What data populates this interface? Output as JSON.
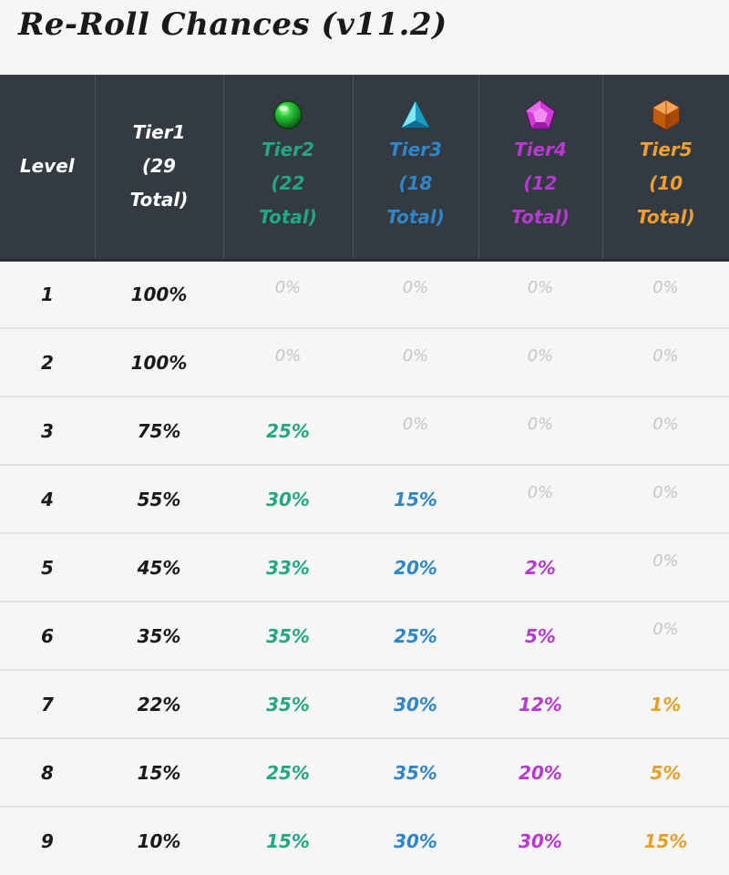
{
  "title": "Re-Roll Chances (v11.2)",
  "columns": {
    "level": "Level",
    "tiers": [
      {
        "label": "Tier1",
        "count": "(29",
        "total": "Total)",
        "gem_icon": "none",
        "color": "#ffffff"
      },
      {
        "label": "Tier2",
        "count": "(22",
        "total": "Total)",
        "gem_icon": "green-orb-icon",
        "color": "#22a882"
      },
      {
        "label": "Tier3",
        "count": "(18",
        "total": "Total)",
        "gem_icon": "blue-triangle-gem-icon",
        "color": "#2f86c9"
      },
      {
        "label": "Tier4",
        "count": "(12",
        "total": "Total)",
        "gem_icon": "purple-pentagon-gem-icon",
        "color": "#b63ad0"
      },
      {
        "label": "Tier5",
        "count": "(10",
        "total": "Total)",
        "gem_icon": "orange-hexagon-gem-icon",
        "color": "#f0a030"
      }
    ]
  },
  "rows": [
    {
      "level": "1",
      "t1": "100%",
      "t2": "0%",
      "t3": "0%",
      "t4": "0%",
      "t5": "0%"
    },
    {
      "level": "2",
      "t1": "100%",
      "t2": "0%",
      "t3": "0%",
      "t4": "0%",
      "t5": "0%"
    },
    {
      "level": "3",
      "t1": "75%",
      "t2": "25%",
      "t3": "0%",
      "t4": "0%",
      "t5": "0%"
    },
    {
      "level": "4",
      "t1": "55%",
      "t2": "30%",
      "t3": "15%",
      "t4": "0%",
      "t5": "0%"
    },
    {
      "level": "5",
      "t1": "45%",
      "t2": "33%",
      "t3": "20%",
      "t4": "2%",
      "t5": "0%"
    },
    {
      "level": "6",
      "t1": "35%",
      "t2": "35%",
      "t3": "25%",
      "t4": "5%",
      "t5": "0%"
    },
    {
      "level": "7",
      "t1": "22%",
      "t2": "35%",
      "t3": "30%",
      "t4": "12%",
      "t5": "1%"
    },
    {
      "level": "8",
      "t1": "15%",
      "t2": "25%",
      "t3": "35%",
      "t4": "20%",
      "t5": "5%"
    },
    {
      "level": "9",
      "t1": "10%",
      "t2": "15%",
      "t3": "30%",
      "t4": "30%",
      "t5": "15%"
    }
  ]
}
